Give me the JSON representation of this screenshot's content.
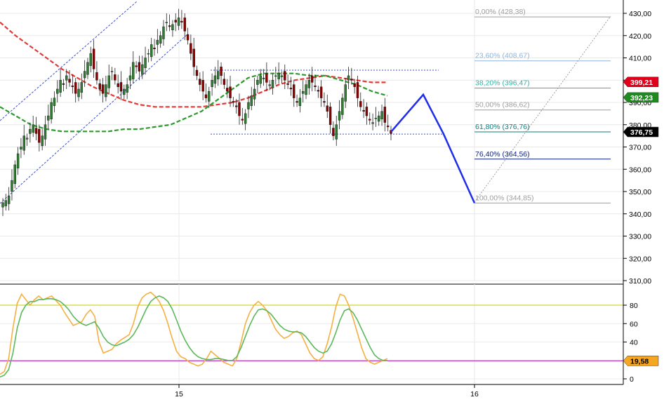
{
  "chart_data": [
    {
      "type": "candlestick",
      "title": "",
      "ylim": [
        305,
        435
      ],
      "yticks": [
        "430,00",
        "420,00",
        "410,00",
        "400,00",
        "390,00",
        "380,00",
        "370,00",
        "360,00",
        "350,00",
        "340,00",
        "330,00",
        "320,00",
        "310,00"
      ],
      "ytick_values": [
        430,
        420,
        410,
        400,
        390,
        380,
        370,
        360,
        350,
        340,
        330,
        320,
        310
      ],
      "xticks": [
        "15",
        "16"
      ],
      "grid": true,
      "candle_colors": {
        "up": "#2e7d32",
        "down": "#8b0000"
      },
      "candles_close": [
        345,
        346,
        348,
        355,
        362,
        367,
        370,
        375,
        374,
        378,
        380,
        376,
        372,
        375,
        380,
        384,
        390,
        392,
        396,
        400,
        398,
        402,
        399,
        397,
        394,
        396,
        399,
        404,
        408,
        412,
        405,
        400,
        396,
        394,
        398,
        402,
        404,
        400,
        397,
        395,
        396,
        398,
        402,
        408,
        406,
        404,
        407,
        410,
        412,
        416,
        414,
        418,
        420,
        424,
        426,
        424,
        425,
        426,
        428,
        426,
        422,
        418,
        412,
        406,
        402,
        398,
        395,
        392,
        395,
        400,
        402,
        404,
        402,
        398,
        395,
        392,
        390,
        388,
        384,
        382,
        385,
        390,
        393,
        396,
        400,
        402,
        401,
        399,
        398,
        400,
        402,
        403,
        402,
        400,
        398,
        396,
        392,
        390,
        392,
        395,
        398,
        400,
        399,
        397,
        395,
        392,
        390,
        386,
        380,
        375,
        380,
        386,
        392,
        398,
        402,
        400,
        397,
        392,
        388,
        386,
        384,
        382,
        381,
        383,
        384,
        386,
        381,
        379,
        376
      ],
      "series": [
        {
          "name": "",
          "color": "#e53935",
          "last": 399.21,
          "values_y": [
            426,
            420,
            415,
            410,
            405,
            401,
            397,
            394,
            391,
            389,
            388,
            388,
            388,
            388,
            389,
            390,
            392,
            395,
            398,
            400,
            401,
            402,
            401,
            400,
            399,
            399
          ]
        },
        {
          "name": "",
          "color": "#2e9a2e",
          "last": 392.23,
          "values_y": [
            388,
            384,
            380,
            378,
            377,
            377,
            377,
            377,
            378,
            378,
            379,
            380,
            383,
            386,
            391,
            396,
            401,
            403,
            403,
            403,
            402,
            402,
            400,
            398,
            395,
            393
          ]
        }
      ],
      "price_badges": [
        {
          "label": "399,21",
          "value": 399.21,
          "color": "#e0001b"
        },
        {
          "label": "392,23",
          "value": 392.23,
          "color": "#1f8a1f"
        },
        {
          "label": "376,75",
          "value": 376.75,
          "color": "#000000"
        }
      ],
      "fibonacci": [
        {
          "label": "0,00% (428,38)",
          "value": 428.38,
          "color": "#9e9e9e"
        },
        {
          "label": "23,60% (408,67)",
          "value": 408.67,
          "color": "#90b4d8"
        },
        {
          "label": "38,20% (396,47)",
          "value": 396.47,
          "color": "#2ab5a5"
        },
        {
          "label": "50,00% (386,62)",
          "value": 386.62,
          "color": "#9e9e9e"
        },
        {
          "label": "61,80% (376,76)",
          "value": 376.76,
          "color": "#0e7e7e"
        },
        {
          "label": "76,40% (364,56)",
          "value": 364.56,
          "color": "#0a1e7a"
        },
        {
          "label": "100,00% (344,85)",
          "value": 344.85,
          "color": "#9e9e9e"
        }
      ],
      "horizontal_levels": [
        404.5,
        375.8
      ],
      "projection_path": [
        376.75,
        393.5,
        375.8,
        344.85
      ]
    },
    {
      "type": "line",
      "title": "",
      "ylim": [
        -5,
        105
      ],
      "yticks": [
        "80",
        "60",
        "40",
        "20",
        "0"
      ],
      "ytick_values": [
        80,
        60,
        40,
        20,
        0
      ],
      "reference_lines": [
        {
          "value": 80,
          "color": "#c8c800"
        },
        {
          "value": 19.58,
          "color": "#b000b0"
        }
      ],
      "price_badges": [
        {
          "label": "19,58",
          "value": 19.58,
          "color": "#f5a623"
        }
      ],
      "series": [
        {
          "name": "",
          "color": "#f5b041",
          "values": [
            5,
            8,
            22,
            55,
            82,
            92,
            86,
            80,
            86,
            90,
            86,
            88,
            90,
            85,
            80,
            72,
            65,
            58,
            60,
            62,
            70,
            75,
            68,
            40,
            28,
            30,
            32,
            38,
            42,
            45,
            48,
            60,
            78,
            88,
            92,
            94,
            90,
            84,
            74,
            60,
            44,
            30,
            24,
            22,
            18,
            16,
            14,
            16,
            22,
            30,
            26,
            22,
            18,
            16,
            14,
            22,
            40,
            60,
            72,
            80,
            84,
            80,
            74,
            64,
            54,
            48,
            44,
            46,
            50,
            52,
            48,
            38,
            28,
            22,
            20,
            24,
            38,
            56,
            78,
            92,
            90,
            80,
            66,
            50,
            34,
            22,
            18,
            16,
            18,
            20,
            22
          ]
        },
        {
          "name": "",
          "color": "#5cb85c",
          "values": [
            2,
            4,
            10,
            28,
            55,
            72,
            80,
            84,
            84,
            86,
            86,
            87,
            87,
            86,
            84,
            80,
            75,
            68,
            63,
            60,
            58,
            60,
            62,
            55,
            46,
            40,
            37,
            36,
            38,
            40,
            43,
            48,
            56,
            66,
            76,
            84,
            88,
            90,
            88,
            84,
            76,
            64,
            52,
            42,
            34,
            28,
            24,
            22,
            21,
            21,
            22,
            22,
            21,
            20,
            20,
            24,
            34,
            46,
            58,
            68,
            75,
            76,
            74,
            70,
            64,
            58,
            54,
            52,
            51,
            51,
            50,
            46,
            40,
            34,
            30,
            28,
            30,
            38,
            50,
            64,
            74,
            76,
            72,
            64,
            54,
            44,
            34,
            26,
            22,
            20,
            20
          ]
        }
      ]
    }
  ]
}
